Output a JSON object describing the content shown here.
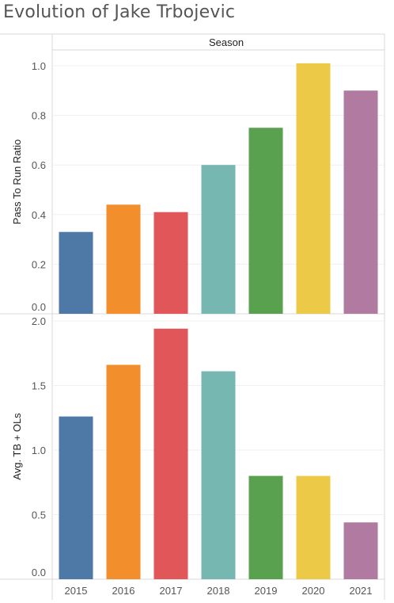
{
  "title": "Evolution of Jake Trbojevic",
  "header": "Season",
  "colors": [
    "#4e79a7",
    "#f28e2b",
    "#e15759",
    "#76b7b2",
    "#59a14f",
    "#edc948",
    "#b07aa1"
  ],
  "chart_data": [
    {
      "type": "bar",
      "ylabel": "Pass To Run Ratio",
      "ylim": [
        0,
        1.05
      ],
      "yticks": [
        "0.0",
        "0.2",
        "0.4",
        "0.6",
        "0.8",
        "1.0"
      ],
      "categories": [
        "2015",
        "2016",
        "2017",
        "2018",
        "2019",
        "2020",
        "2021"
      ],
      "values": [
        0.33,
        0.44,
        0.41,
        0.6,
        0.75,
        1.01,
        0.9
      ]
    },
    {
      "type": "bar",
      "ylabel": "Avg. TB + OLs",
      "ylim": [
        0,
        2.05
      ],
      "yticks": [
        "0.0",
        "0.5",
        "1.0",
        "1.5",
        "2.0"
      ],
      "categories": [
        "2015",
        "2016",
        "2017",
        "2018",
        "2019",
        "2020",
        "2021"
      ],
      "values": [
        1.26,
        1.66,
        1.94,
        1.61,
        0.8,
        0.8,
        0.44
      ]
    }
  ]
}
